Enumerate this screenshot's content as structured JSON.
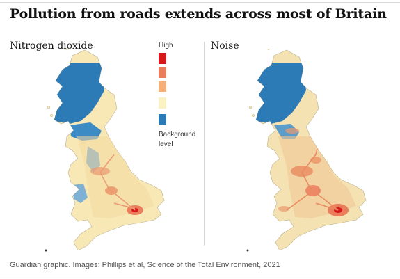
{
  "title": "Pollution from roads extends across most of Britain",
  "panels": {
    "left_label": "Nitrogen dioxide",
    "right_label": "Noise"
  },
  "legend": {
    "high_label": "High",
    "background_label_line1": "Background",
    "background_label_line2": "level",
    "scale_colors": [
      "#d7191c",
      "#ea7d5c",
      "#f5b07a",
      "#fbf2c4",
      "#2c7bb6"
    ]
  },
  "caption": "Guardian graphic. Images: Phillips et al, Science of the Total Environment, 2021",
  "colors": {
    "land_base": "#f7e8b6",
    "highlands": "#2c7bb6",
    "urban_high": "#ea7d5c",
    "urban_peak": "#d7191c"
  }
}
